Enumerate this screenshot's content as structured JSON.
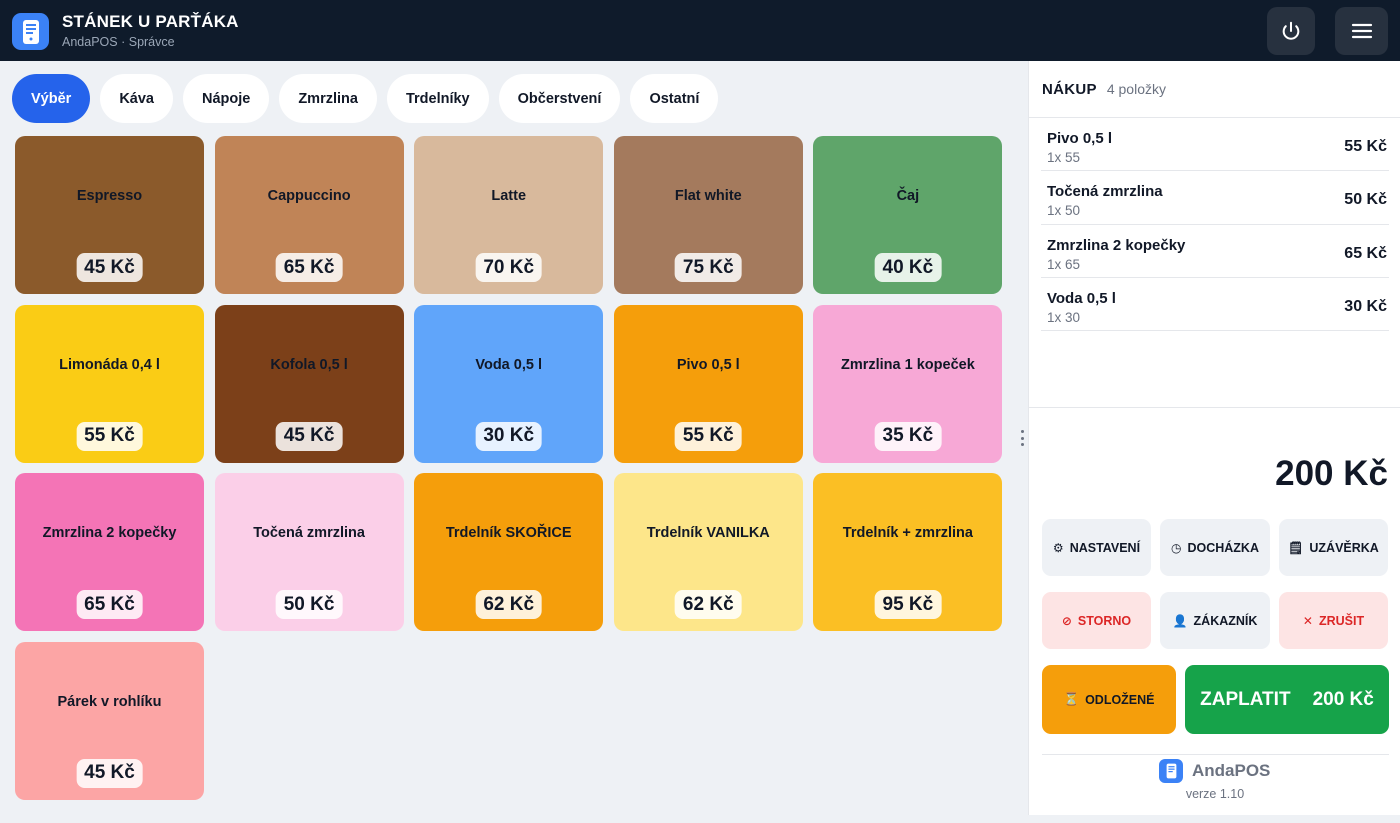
{
  "header": {
    "title": "STÁNEK U PARŤÁKA",
    "app_name": "AndaPOS",
    "separator": "·",
    "role": "Správce",
    "logo_icon": "receipt-icon",
    "power_icon": "power-icon",
    "menu_icon": "hamburger-menu-icon"
  },
  "tabs": [
    {
      "label": "Výběr",
      "active": true
    },
    {
      "label": "Káva"
    },
    {
      "label": "Nápoje"
    },
    {
      "label": "Zmrzlina"
    },
    {
      "label": "Trdelníky"
    },
    {
      "label": "Občerstvení"
    },
    {
      "label": "Ostatní"
    }
  ],
  "products": [
    {
      "name": "Espresso",
      "price": "45 Kč",
      "color": "#8b5a2b"
    },
    {
      "name": "Cappuccino",
      "price": "65 Kč",
      "color": "#c08457"
    },
    {
      "name": "Latte",
      "price": "70 Kč",
      "color": "#d8b99c"
    },
    {
      "name": "Flat white",
      "price": "75 Kč",
      "color": "#a47a5d"
    },
    {
      "name": "Čaj",
      "price": "40 Kč",
      "color": "#5fa56a"
    },
    {
      "name": "Limonáda 0,4 l",
      "price": "55 Kč",
      "color": "#facc15"
    },
    {
      "name": "Kofola 0,5 l",
      "price": "45 Kč",
      "color": "#7c4019"
    },
    {
      "name": "Voda 0,5 l",
      "price": "30 Kč",
      "color": "#60a5fa"
    },
    {
      "name": "Pivo 0,5 l",
      "price": "55 Kč",
      "color": "#f59e0b"
    },
    {
      "name": "Zmrzlina 1 kopeček",
      "price": "35 Kč",
      "color": "#f7a8d6"
    },
    {
      "name": "Zmrzlina 2 kopečky",
      "price": "65 Kč",
      "color": "#f474b6"
    },
    {
      "name": "Točená zmrzlina",
      "price": "50 Kč",
      "color": "#fbcfe8"
    },
    {
      "name": "Trdelník SKOŘICE",
      "price": "62 Kč",
      "color": "#f59e0b"
    },
    {
      "name": "Trdelník VANILKA",
      "price": "62 Kč",
      "color": "#fde68a"
    },
    {
      "name": "Trdelník + zmrzlina",
      "price": "95 Kč",
      "color": "#fbbf24"
    },
    {
      "name": "Párek v rohlíku",
      "price": "45 Kč",
      "color": "#fca5a5"
    }
  ],
  "cart": {
    "title": "NÁKUP",
    "count": "4 položky",
    "items": [
      {
        "name": "Pivo 0,5 l",
        "qty": "1x 55",
        "price": "55 Kč"
      },
      {
        "name": "Točená zmrzlina",
        "qty": "1x 50",
        "price": "50 Kč"
      },
      {
        "name": "Zmrzlina 2 kopečky",
        "qty": "1x 65",
        "price": "65 Kč"
      },
      {
        "name": "Voda 0,5 l",
        "qty": "1x 30",
        "price": "30 Kč"
      }
    ],
    "total": "200 Kč"
  },
  "actions": {
    "settings": {
      "label": "NASTAVENÍ",
      "icon": "gear-icon",
      "glyph": "⚙"
    },
    "attendance": {
      "label": "DOCHÁZKA",
      "icon": "clock-icon",
      "glyph": "◷"
    },
    "closing": {
      "label": "UZÁVĚRKA",
      "icon": "receipt-icon",
      "glyph": "🗒"
    },
    "storno": {
      "label": "STORNO",
      "icon": "prohibited-icon",
      "glyph": "⊘"
    },
    "customer": {
      "label": "ZÁKAZNÍK",
      "icon": "person-icon",
      "glyph": "👤"
    },
    "cancel": {
      "label": "ZRUŠIT",
      "icon": "close-icon",
      "glyph": "✕"
    },
    "parked": {
      "label": "ODLOŽENÉ",
      "icon": "hourglass-icon",
      "glyph": "⏳"
    },
    "pay": {
      "label": "ZAPLATIT",
      "amount": "200 Kč"
    }
  },
  "footer": {
    "brand": "AndaPOS",
    "version": "verze 1.10"
  }
}
